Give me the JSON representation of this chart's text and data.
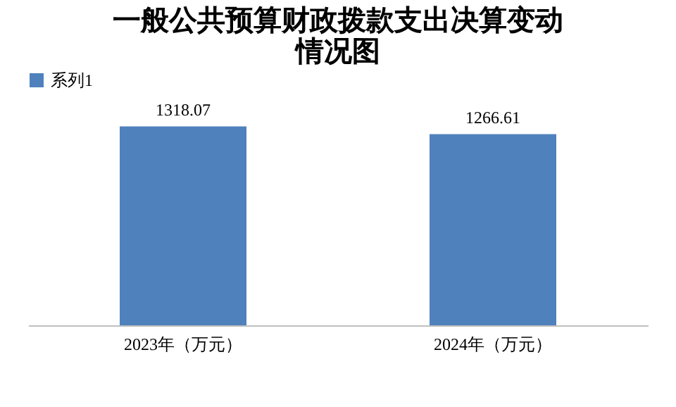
{
  "chart_data": {
    "type": "bar",
    "title": "一般公共预算财政拨款支出决算变动情况图",
    "categories": [
      "2023年（万元）",
      "2024年（万元）"
    ],
    "series": [
      {
        "name": "系列1",
        "color": "#4f81bd",
        "values": [
          1318.07,
          1266.61
        ]
      }
    ],
    "tick_labels": "x",
    "data_labels": true,
    "legend": "top"
  }
}
